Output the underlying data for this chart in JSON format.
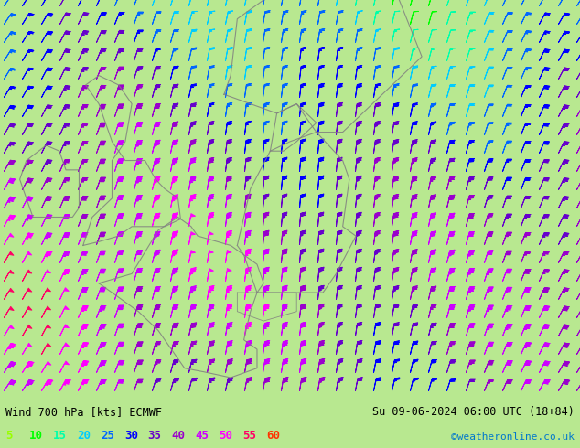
{
  "title_left": "Wind 700 hPa [kts] ECMWF",
  "title_right": "Su 09-06-2024 06:00 UTC (18+84)",
  "credit": "©weatheronline.co.uk",
  "legend_values": [
    5,
    10,
    15,
    20,
    25,
    30,
    35,
    40,
    45,
    50,
    55,
    60
  ],
  "legend_colors": [
    "#99ff00",
    "#00ff00",
    "#00ffaa",
    "#00ccff",
    "#0066ff",
    "#0000ff",
    "#6600cc",
    "#9900cc",
    "#cc00ff",
    "#ff00ff",
    "#ff0066",
    "#ff3300"
  ],
  "bg_color": "#b8e890",
  "map_area": {
    "xlim": [
      -12,
      32
    ],
    "ylim": [
      42,
      63
    ]
  },
  "bottom_bar_color": "#d8f8b0",
  "text_color": "#000000",
  "speed_thresholds": [
    5,
    10,
    15,
    20,
    25,
    30,
    35,
    40,
    45,
    50,
    55,
    60
  ],
  "speed_colors": [
    "#99ff00",
    "#00ff00",
    "#00ffaa",
    "#00ccff",
    "#0066ff",
    "#0000ff",
    "#6600cc",
    "#9900cc",
    "#cc00ff",
    "#ff00ff",
    "#ff0066",
    "#ff3300"
  ]
}
